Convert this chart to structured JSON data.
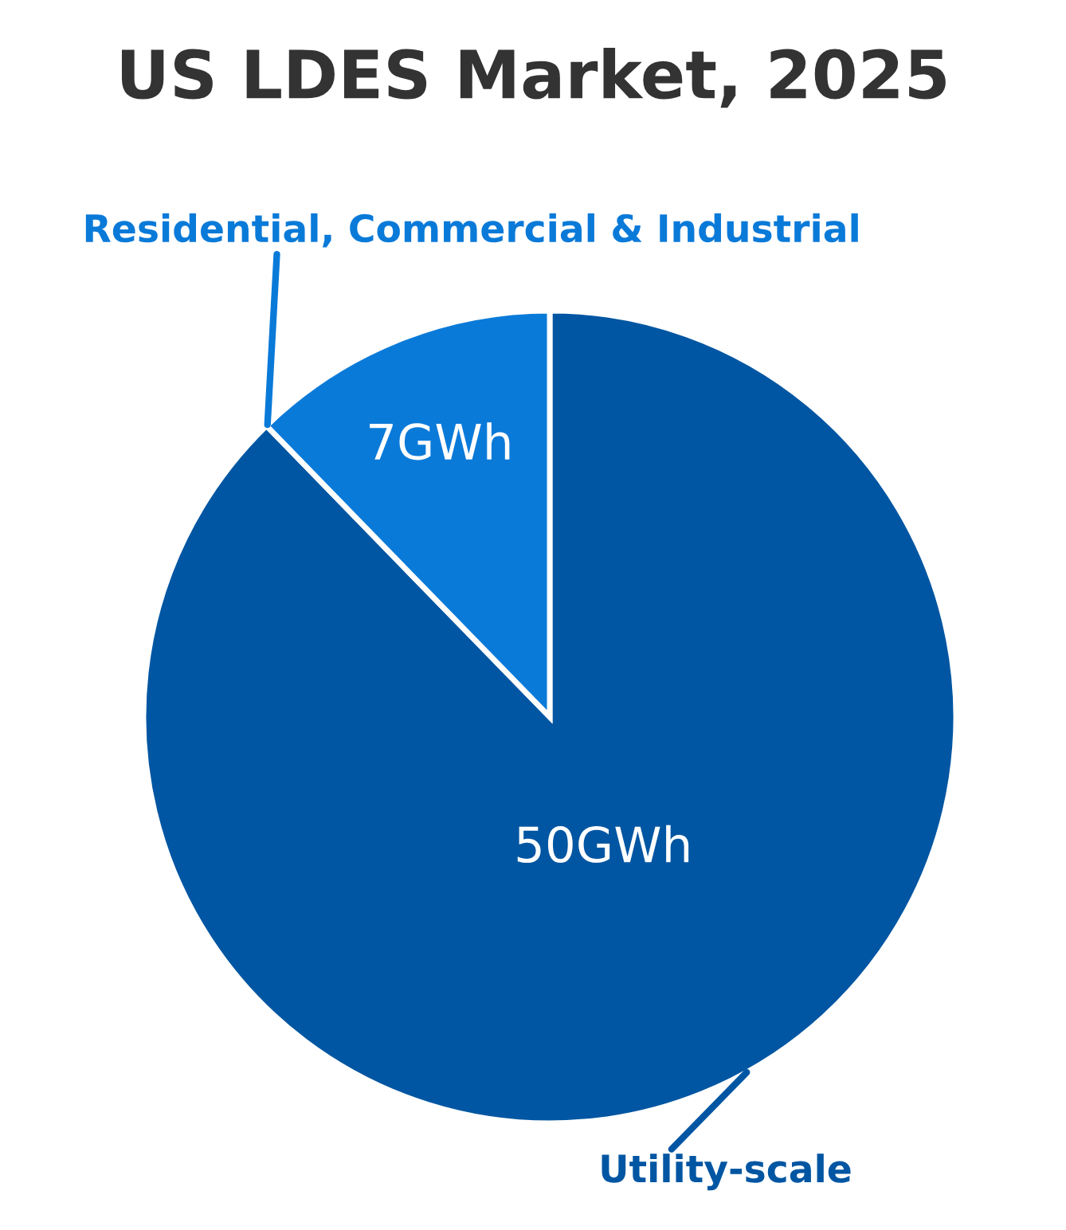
{
  "chart_data": {
    "type": "pie",
    "title": "US LDES Market, 2025",
    "categories": [
      "Utility-scale",
      "Residential, Commercial & Industrial"
    ],
    "values": [
      50,
      7
    ],
    "colors": [
      "#0056a2",
      "#0a7ad9"
    ],
    "value_labels": [
      "50GWh",
      "7GWh"
    ]
  }
}
